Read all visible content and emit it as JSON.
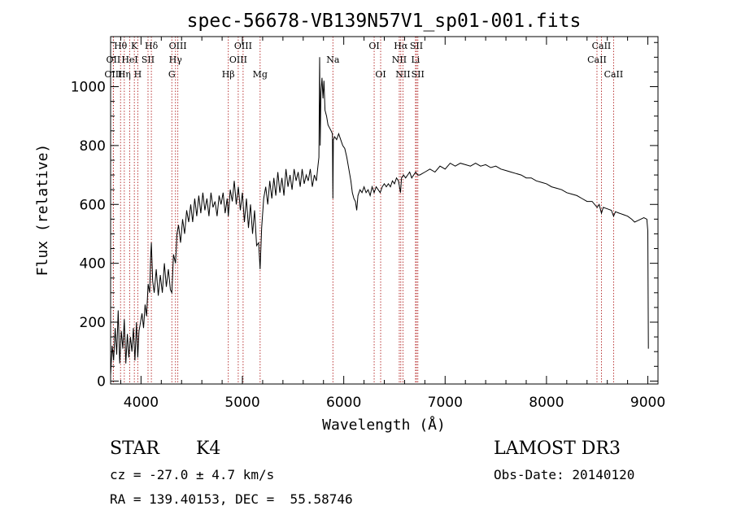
{
  "chart_data": {
    "type": "line",
    "title": "spec-56678-VB139N57V1_sp01-001.fits",
    "xlabel": "Wavelength (Å)",
    "ylabel": "Flux (relative)",
    "xlim": [
      3700,
      9100
    ],
    "ylim": [
      -10,
      1170
    ],
    "xticks": [
      4000,
      5000,
      6000,
      7000,
      8000,
      9000
    ],
    "yticks": [
      0,
      200,
      400,
      600,
      800,
      1000
    ],
    "grid": false,
    "line_color": "#000000",
    "marker_color": "#b22222",
    "lines": [
      {
        "name": "Hθ",
        "x": 3798,
        "row": 0
      },
      {
        "name": "OII",
        "x": 3727,
        "row": 1
      },
      {
        "name": "OIII",
        "x": 3727,
        "row": 2
      },
      {
        "name": "HeI",
        "x": 3889,
        "row": 1
      },
      {
        "name": "Hη",
        "x": 3835,
        "row": 2
      },
      {
        "name": "K",
        "x": 3934,
        "row": 0
      },
      {
        "name": "H",
        "x": 3968,
        "row": 2
      },
      {
        "name": "SII",
        "x": 4069,
        "row": 1
      },
      {
        "name": "Hδ",
        "x": 4102,
        "row": 0
      },
      {
        "name": "OIII",
        "x": 4363,
        "row": 0
      },
      {
        "name": "Hγ",
        "x": 4340,
        "row": 1
      },
      {
        "name": "G",
        "x": 4304,
        "row": 2
      },
      {
        "name": "OIII",
        "x": 5007,
        "row": 0
      },
      {
        "name": "OIII",
        "x": 4959,
        "row": 1
      },
      {
        "name": "Hβ",
        "x": 4861,
        "row": 2
      },
      {
        "name": "Mg",
        "x": 5175,
        "row": 2
      },
      {
        "name": "Na",
        "x": 5893,
        "row": 1
      },
      {
        "name": "OI",
        "x": 6300,
        "row": 0
      },
      {
        "name": "OI",
        "x": 6364,
        "row": 2
      },
      {
        "name": "Hα",
        "x": 6563,
        "row": 0
      },
      {
        "name": "NII",
        "x": 6548,
        "row": 1
      },
      {
        "name": "NII",
        "x": 6584,
        "row": 2
      },
      {
        "name": "SII",
        "x": 6717,
        "row": 0
      },
      {
        "name": "Li",
        "x": 6708,
        "row": 1
      },
      {
        "name": "SII",
        "x": 6731,
        "row": 2
      },
      {
        "name": "CaII",
        "x": 8542,
        "row": 0
      },
      {
        "name": "CaII",
        "x": 8498,
        "row": 1
      },
      {
        "name": "CaII",
        "x": 8662,
        "row": 2
      }
    ],
    "series": [
      {
        "points": [
          [
            3700,
            20
          ],
          [
            3715,
            120
          ],
          [
            3730,
            70
          ],
          [
            3745,
            180
          ],
          [
            3760,
            90
          ],
          [
            3775,
            240
          ],
          [
            3790,
            60
          ],
          [
            3805,
            170
          ],
          [
            3820,
            110
          ],
          [
            3835,
            210
          ],
          [
            3850,
            60
          ],
          [
            3865,
            160
          ],
          [
            3880,
            80
          ],
          [
            3895,
            150
          ],
          [
            3910,
            100
          ],
          [
            3925,
            180
          ],
          [
            3940,
            70
          ],
          [
            3955,
            200
          ],
          [
            3968,
            80
          ],
          [
            3980,
            170
          ],
          [
            3995,
            200
          ],
          [
            4010,
            230
          ],
          [
            4025,
            180
          ],
          [
            4040,
            260
          ],
          [
            4055,
            220
          ],
          [
            4070,
            330
          ],
          [
            4085,
            300
          ],
          [
            4095,
            420
          ],
          [
            4102,
            470
          ],
          [
            4115,
            340
          ],
          [
            4130,
            300
          ],
          [
            4150,
            380
          ],
          [
            4170,
            290
          ],
          [
            4190,
            360
          ],
          [
            4210,
            300
          ],
          [
            4230,
            400
          ],
          [
            4250,
            320
          ],
          [
            4270,
            380
          ],
          [
            4290,
            310
          ],
          [
            4304,
            300
          ],
          [
            4320,
            430
          ],
          [
            4340,
            400
          ],
          [
            4355,
            500
          ],
          [
            4370,
            530
          ],
          [
            4390,
            470
          ],
          [
            4410,
            550
          ],
          [
            4430,
            500
          ],
          [
            4450,
            580
          ],
          [
            4470,
            540
          ],
          [
            4490,
            600
          ],
          [
            4510,
            540
          ],
          [
            4530,
            620
          ],
          [
            4550,
            560
          ],
          [
            4570,
            630
          ],
          [
            4590,
            570
          ],
          [
            4610,
            640
          ],
          [
            4630,
            580
          ],
          [
            4650,
            620
          ],
          [
            4670,
            560
          ],
          [
            4690,
            640
          ],
          [
            4710,
            590
          ],
          [
            4730,
            610
          ],
          [
            4750,
            560
          ],
          [
            4770,
            630
          ],
          [
            4790,
            600
          ],
          [
            4810,
            640
          ],
          [
            4830,
            570
          ],
          [
            4850,
            620
          ],
          [
            4861,
            560
          ],
          [
            4880,
            650
          ],
          [
            4900,
            610
          ],
          [
            4920,
            680
          ],
          [
            4940,
            600
          ],
          [
            4960,
            660
          ],
          [
            4980,
            580
          ],
          [
            5000,
            640
          ],
          [
            5020,
            540
          ],
          [
            5040,
            620
          ],
          [
            5060,
            520
          ],
          [
            5080,
            600
          ],
          [
            5100,
            500
          ],
          [
            5120,
            580
          ],
          [
            5140,
            460
          ],
          [
            5160,
            470
          ],
          [
            5175,
            380
          ],
          [
            5190,
            520
          ],
          [
            5210,
            620
          ],
          [
            5230,
            660
          ],
          [
            5250,
            600
          ],
          [
            5270,
            680
          ],
          [
            5290,
            620
          ],
          [
            5310,
            690
          ],
          [
            5330,
            630
          ],
          [
            5350,
            710
          ],
          [
            5370,
            640
          ],
          [
            5390,
            690
          ],
          [
            5410,
            630
          ],
          [
            5430,
            720
          ],
          [
            5450,
            660
          ],
          [
            5470,
            700
          ],
          [
            5490,
            650
          ],
          [
            5510,
            720
          ],
          [
            5530,
            680
          ],
          [
            5550,
            710
          ],
          [
            5570,
            660
          ],
          [
            5590,
            720
          ],
          [
            5610,
            670
          ],
          [
            5630,
            700
          ],
          [
            5650,
            680
          ],
          [
            5670,
            720
          ],
          [
            5690,
            660
          ],
          [
            5710,
            700
          ],
          [
            5730,
            680
          ],
          [
            5745,
            730
          ],
          [
            5755,
            760
          ],
          [
            5762,
            1100
          ],
          [
            5768,
            800
          ],
          [
            5775,
            980
          ],
          [
            5785,
            1030
          ],
          [
            5795,
            960
          ],
          [
            5805,
            1020
          ],
          [
            5815,
            920
          ],
          [
            5830,
            900
          ],
          [
            5845,
            870
          ],
          [
            5860,
            860
          ],
          [
            5875,
            850
          ],
          [
            5888,
            840
          ],
          [
            5893,
            620
          ],
          [
            5898,
            820
          ],
          [
            5910,
            830
          ],
          [
            5930,
            820
          ],
          [
            5950,
            840
          ],
          [
            5970,
            820
          ],
          [
            5990,
            800
          ],
          [
            6010,
            790
          ],
          [
            6030,
            760
          ],
          [
            6050,
            720
          ],
          [
            6070,
            680
          ],
          [
            6085,
            640
          ],
          [
            6100,
            620
          ],
          [
            6115,
            610
          ],
          [
            6128,
            580
          ],
          [
            6140,
            630
          ],
          [
            6160,
            650
          ],
          [
            6180,
            640
          ],
          [
            6200,
            660
          ],
          [
            6220,
            640
          ],
          [
            6240,
            650
          ],
          [
            6260,
            630
          ],
          [
            6280,
            660
          ],
          [
            6300,
            640
          ],
          [
            6320,
            660
          ],
          [
            6340,
            650
          ],
          [
            6360,
            640
          ],
          [
            6380,
            660
          ],
          [
            6400,
            670
          ],
          [
            6420,
            660
          ],
          [
            6440,
            670
          ],
          [
            6460,
            660
          ],
          [
            6480,
            680
          ],
          [
            6500,
            670
          ],
          [
            6520,
            690
          ],
          [
            6540,
            680
          ],
          [
            6560,
            640
          ],
          [
            6570,
            690
          ],
          [
            6590,
            700
          ],
          [
            6610,
            690
          ],
          [
            6630,
            700
          ],
          [
            6650,
            710
          ],
          [
            6670,
            690
          ],
          [
            6690,
            700
          ],
          [
            6710,
            710
          ],
          [
            6730,
            700
          ],
          [
            6750,
            700
          ],
          [
            6800,
            710
          ],
          [
            6850,
            720
          ],
          [
            6900,
            710
          ],
          [
            6950,
            730
          ],
          [
            7000,
            720
          ],
          [
            7050,
            740
          ],
          [
            7100,
            730
          ],
          [
            7150,
            740
          ],
          [
            7200,
            735
          ],
          [
            7250,
            730
          ],
          [
            7300,
            740
          ],
          [
            7350,
            730
          ],
          [
            7400,
            735
          ],
          [
            7450,
            725
          ],
          [
            7500,
            730
          ],
          [
            7550,
            720
          ],
          [
            7600,
            715
          ],
          [
            7650,
            710
          ],
          [
            7700,
            705
          ],
          [
            7750,
            700
          ],
          [
            7800,
            690
          ],
          [
            7850,
            690
          ],
          [
            7900,
            680
          ],
          [
            7950,
            675
          ],
          [
            8000,
            670
          ],
          [
            8050,
            660
          ],
          [
            8100,
            655
          ],
          [
            8150,
            650
          ],
          [
            8200,
            640
          ],
          [
            8250,
            635
          ],
          [
            8300,
            630
          ],
          [
            8350,
            620
          ],
          [
            8400,
            610
          ],
          [
            8450,
            610
          ],
          [
            8500,
            590
          ],
          [
            8520,
            600
          ],
          [
            8542,
            570
          ],
          [
            8560,
            590
          ],
          [
            8600,
            585
          ],
          [
            8640,
            580
          ],
          [
            8662,
            560
          ],
          [
            8680,
            575
          ],
          [
            8720,
            570
          ],
          [
            8760,
            565
          ],
          [
            8800,
            560
          ],
          [
            8840,
            550
          ],
          [
            8870,
            540
          ],
          [
            8900,
            545
          ],
          [
            8930,
            550
          ],
          [
            8960,
            555
          ],
          [
            8990,
            550
          ],
          [
            9000,
            510
          ],
          [
            9005,
            110
          ]
        ]
      }
    ]
  },
  "info": {
    "object_class": "STAR",
    "subclass": "K4",
    "survey": "LAMOST DR3",
    "velocity": "cz = -27.0 ± 4.7 km/s",
    "obs_date": "Obs-Date: 20140120",
    "coords": "RA = 139.40153, DEC =  55.58746"
  }
}
